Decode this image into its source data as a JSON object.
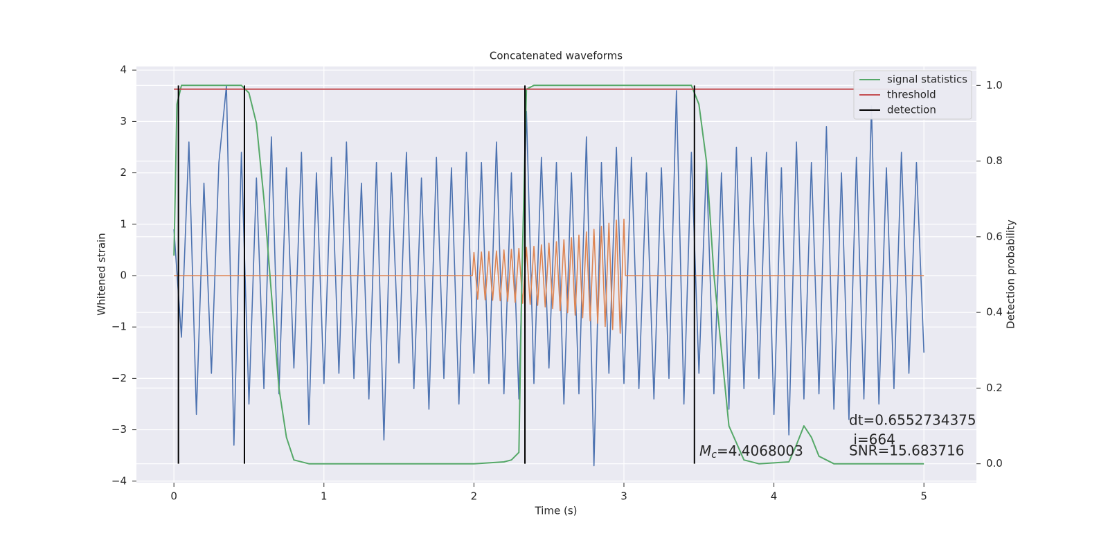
{
  "chart_data": {
    "type": "line",
    "title": "Concatenated waveforms",
    "xlabel": "Time (s)",
    "ylabel": "Whitened strain",
    "y2label": "Detection probability",
    "xlim": [
      -0.25,
      5.35
    ],
    "xticks": [
      0,
      1,
      2,
      3,
      4,
      5
    ],
    "ylim": [
      -4.03,
      4.07
    ],
    "yticks": [
      {
        "value": -4,
        "label": "−4"
      },
      {
        "value": -3,
        "label": "−3"
      },
      {
        "value": -2,
        "label": "−2"
      },
      {
        "value": -1,
        "label": "−1"
      },
      0,
      1,
      2,
      3,
      4
    ],
    "y2lim": [
      -0.05,
      1.05
    ],
    "y2ticks": [
      0.0,
      0.2,
      0.4,
      0.6,
      0.8,
      1.0
    ],
    "y2ticklabels": [
      "0.0",
      "0.2",
      "0.4",
      "0.6",
      "0.8",
      "1.0"
    ],
    "grid": true,
    "legend": "upper right",
    "series": [
      {
        "color": "#4c72b0",
        "x": [
          0,
          0.05,
          0.1,
          0.15,
          0.2,
          0.25,
          0.3,
          0.35,
          0.4,
          0.45,
          0.5,
          0.55,
          0.6,
          0.65,
          0.7,
          0.75,
          0.8,
          0.85,
          0.9,
          0.95,
          1,
          1.05,
          1.1,
          1.15,
          1.2,
          1.25,
          1.3,
          1.35,
          1.4,
          1.45,
          1.5,
          1.55,
          1.6,
          1.65,
          1.7,
          1.75,
          1.8,
          1.85,
          1.9,
          1.95,
          2,
          2.05,
          2.1,
          2.15,
          2.2,
          2.25,
          2.3,
          2.35,
          2.4,
          2.45,
          2.5,
          2.55,
          2.6,
          2.65,
          2.7,
          2.75,
          2.8,
          2.85,
          2.9,
          2.95,
          3,
          3.05,
          3.1,
          3.15,
          3.2,
          3.25,
          3.3,
          3.35,
          3.4,
          3.45,
          3.5,
          3.55,
          3.6,
          3.65,
          3.7,
          3.75,
          3.8,
          3.85,
          3.9,
          3.95,
          4,
          4.05,
          4.1,
          4.15,
          4.2,
          4.25,
          4.3,
          4.35,
          4.4,
          4.45,
          4.5,
          4.55,
          4.6,
          4.65,
          4.7,
          4.75,
          4.8,
          4.85,
          4.9,
          4.95,
          5
        ],
        "values": [
          0.9,
          -1.2,
          2.6,
          -2.7,
          1.8,
          -1.9,
          2.2,
          3.7,
          -3.3,
          2.4,
          -2.5,
          1.9,
          -2.2,
          2.7,
          -2.3,
          2.1,
          -1.8,
          2.4,
          -2.9,
          2.0,
          -2.1,
          2.3,
          -1.9,
          2.6,
          -2.0,
          1.8,
          -2.4,
          2.2,
          -3.2,
          2.0,
          -1.7,
          2.4,
          -2.2,
          1.9,
          -2.6,
          2.3,
          -2.0,
          2.1,
          -2.5,
          2.4,
          -1.9,
          2.2,
          -2.1,
          2.6,
          -2.3,
          2.0,
          -2.4,
          3.2,
          -2.1,
          2.3,
          -1.8,
          2.2,
          -2.5,
          2.0,
          -2.3,
          2.7,
          -3.7,
          2.2,
          -1.9,
          2.5,
          -2.1,
          2.3,
          -2.2,
          2.0,
          -2.4,
          2.1,
          -2.0,
          3.6,
          -2.5,
          2.4,
          -1.9,
          2.2,
          -2.3,
          2.0,
          -2.6,
          2.5,
          -2.2,
          2.3,
          -2.0,
          2.4,
          -2.7,
          2.1,
          -3.1,
          2.6,
          -2.4,
          2.2,
          -2.3,
          2.9,
          -2.6,
          2.0,
          -2.8,
          2.3,
          -2.4,
          3.3,
          -2.5,
          2.1,
          -2.2,
          2.4,
          -1.9,
          2.2,
          -1.5
        ]
      },
      {
        "color": "#dd8452",
        "x": [
          0,
          1.99,
          2.0,
          2.025,
          2.05,
          2.075,
          2.1,
          2.125,
          2.15,
          2.175,
          2.2,
          2.225,
          2.25,
          2.275,
          2.3,
          2.325,
          2.35,
          2.375,
          2.4,
          2.425,
          2.45,
          2.475,
          2.5,
          2.525,
          2.55,
          2.575,
          2.6,
          2.625,
          2.65,
          2.675,
          2.7,
          2.725,
          2.75,
          2.775,
          2.8,
          2.825,
          2.85,
          2.875,
          2.9,
          2.925,
          2.95,
          2.975,
          3.0,
          3.01,
          5
        ],
        "values": [
          0,
          0,
          0.45,
          -0.46,
          0.46,
          -0.47,
          0.47,
          -0.48,
          0.48,
          -0.49,
          0.5,
          -0.5,
          0.51,
          -0.52,
          0.53,
          -0.54,
          0.55,
          -0.56,
          0.57,
          -0.58,
          0.6,
          -0.61,
          0.63,
          -0.64,
          0.66,
          -0.68,
          0.7,
          -0.72,
          0.74,
          -0.77,
          0.79,
          -0.82,
          0.85,
          -0.88,
          0.9,
          -0.93,
          0.96,
          -0.99,
          1.02,
          -1.05,
          1.08,
          -1.12,
          1.1,
          0,
          0
        ]
      },
      {
        "name": "signal statistics",
        "color": "#55a868",
        "axis": "y2",
        "x": [
          0,
          0.02,
          0.05,
          0.45,
          0.5,
          0.55,
          0.6,
          0.65,
          0.7,
          0.75,
          0.8,
          0.9,
          2.0,
          2.2,
          2.25,
          2.3,
          2.32,
          2.35,
          2.4,
          3.45,
          3.5,
          3.55,
          3.6,
          3.65,
          3.7,
          3.8,
          3.9,
          4.1,
          4.15,
          4.2,
          4.25,
          4.3,
          4.4,
          5.0
        ],
        "values": [
          0.55,
          0.95,
          1.0,
          1.0,
          0.98,
          0.9,
          0.7,
          0.45,
          0.2,
          0.07,
          0.01,
          0,
          0,
          0.005,
          0.01,
          0.03,
          0.5,
          0.99,
          1.0,
          1.0,
          0.95,
          0.8,
          0.5,
          0.3,
          0.1,
          0.01,
          0,
          0.005,
          0.05,
          0.1,
          0.07,
          0.02,
          0,
          0
        ]
      },
      {
        "name": "threshold",
        "color": "#c44e52",
        "axis": "y2",
        "x": [
          0,
          5
        ],
        "values": [
          0.99,
          0.99
        ]
      },
      {
        "name": "detection",
        "color": "#000000",
        "axis": "y2",
        "x": [
          0.03,
          0.47,
          2.34,
          3.47
        ]
      }
    ],
    "annotations": {
      "mc_symbol": "M",
      "mc_subscript": "c",
      "mc_text": "=4.4068003",
      "dt": "dt=0.6552734375",
      "i": " i=664",
      "snr": "SNR=15.683716"
    }
  }
}
